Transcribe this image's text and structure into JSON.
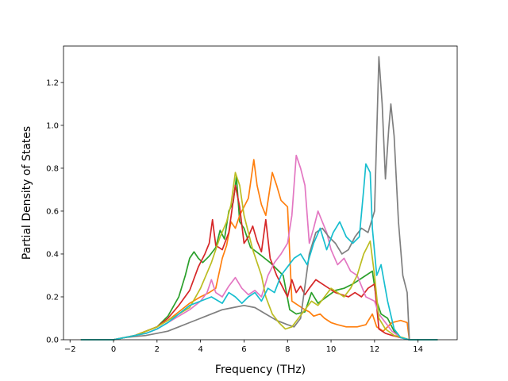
{
  "chart_data": {
    "type": "line",
    "title": "",
    "xlabel": "Frequency (THz)",
    "ylabel": "Partial Density of States",
    "xlim": [
      -2.3,
      15.8
    ],
    "ylim": [
      0.0,
      1.37
    ],
    "xticks": [
      -2,
      0,
      2,
      4,
      6,
      8,
      10,
      12,
      14
    ],
    "xtick_labels": [
      "−2",
      "0",
      "2",
      "4",
      "6",
      "8",
      "10",
      "12",
      "14"
    ],
    "yticks": [
      0.0,
      0.2,
      0.4,
      0.6,
      0.8,
      1.0,
      1.2
    ],
    "ytick_labels": [
      "0.0",
      "0.2",
      "0.4",
      "0.6",
      "0.8",
      "1.0",
      "1.2"
    ],
    "grid": false,
    "legend": "none",
    "series": [
      {
        "color": "#2ca02c",
        "points": [
          [
            -1.5,
            0
          ],
          [
            0,
            0
          ],
          [
            0.5,
            0.01
          ],
          [
            1,
            0.02
          ],
          [
            1.5,
            0.04
          ],
          [
            2,
            0.06
          ],
          [
            2.5,
            0.11
          ],
          [
            3,
            0.2
          ],
          [
            3.3,
            0.3
          ],
          [
            3.5,
            0.38
          ],
          [
            3.7,
            0.41
          ],
          [
            3.9,
            0.38
          ],
          [
            4.1,
            0.36
          ],
          [
            4.4,
            0.39
          ],
          [
            4.7,
            0.43
          ],
          [
            4.9,
            0.51
          ],
          [
            5.1,
            0.47
          ],
          [
            5.3,
            0.6
          ],
          [
            5.5,
            0.64
          ],
          [
            5.65,
            0.76
          ],
          [
            5.8,
            0.55
          ],
          [
            6,
            0.52
          ],
          [
            6.3,
            0.43
          ],
          [
            6.7,
            0.4
          ],
          [
            7.2,
            0.36
          ],
          [
            7.8,
            0.3
          ],
          [
            8.1,
            0.14
          ],
          [
            8.4,
            0.12
          ],
          [
            8.8,
            0.13
          ],
          [
            9.1,
            0.22
          ],
          [
            9.4,
            0.17
          ],
          [
            9.8,
            0.2
          ],
          [
            10.2,
            0.23
          ],
          [
            10.6,
            0.24
          ],
          [
            11,
            0.26
          ],
          [
            11.3,
            0.28
          ],
          [
            11.6,
            0.3
          ],
          [
            11.9,
            0.32
          ],
          [
            12.1,
            0.18
          ],
          [
            12.3,
            0.12
          ],
          [
            12.6,
            0.1
          ],
          [
            12.9,
            0.04
          ],
          [
            13.2,
            0.01
          ],
          [
            13.6,
            0
          ],
          [
            14.9,
            0
          ]
        ]
      },
      {
        "color": "#ff7f0e",
        "points": [
          [
            -1.5,
            0
          ],
          [
            0,
            0
          ],
          [
            0.5,
            0.01
          ],
          [
            1,
            0.02
          ],
          [
            1.5,
            0.04
          ],
          [
            2,
            0.06
          ],
          [
            2.5,
            0.09
          ],
          [
            3,
            0.13
          ],
          [
            3.5,
            0.17
          ],
          [
            4,
            0.2
          ],
          [
            4.4,
            0.22
          ],
          [
            4.7,
            0.24
          ],
          [
            5,
            0.38
          ],
          [
            5.2,
            0.44
          ],
          [
            5.4,
            0.55
          ],
          [
            5.6,
            0.52
          ],
          [
            5.8,
            0.58
          ],
          [
            6,
            0.62
          ],
          [
            6.2,
            0.66
          ],
          [
            6.45,
            0.84
          ],
          [
            6.6,
            0.72
          ],
          [
            6.8,
            0.63
          ],
          [
            7,
            0.58
          ],
          [
            7.3,
            0.78
          ],
          [
            7.5,
            0.72
          ],
          [
            7.7,
            0.65
          ],
          [
            8,
            0.62
          ],
          [
            8.2,
            0.18
          ],
          [
            8.5,
            0.16
          ],
          [
            8.8,
            0.14
          ],
          [
            9,
            0.13
          ],
          [
            9.2,
            0.11
          ],
          [
            9.5,
            0.12
          ],
          [
            9.7,
            0.1
          ],
          [
            10,
            0.08
          ],
          [
            10.3,
            0.07
          ],
          [
            10.7,
            0.06
          ],
          [
            11.2,
            0.06
          ],
          [
            11.6,
            0.07
          ],
          [
            11.9,
            0.12
          ],
          [
            12.1,
            0.06
          ],
          [
            12.4,
            0.04
          ],
          [
            12.8,
            0.08
          ],
          [
            13.2,
            0.09
          ],
          [
            13.5,
            0.08
          ],
          [
            13.6,
            0
          ],
          [
            14.9,
            0
          ]
        ]
      },
      {
        "color": "#d62728",
        "points": [
          [
            -1.5,
            0
          ],
          [
            0,
            0
          ],
          [
            0.5,
            0.01
          ],
          [
            1,
            0.02
          ],
          [
            1.5,
            0.04
          ],
          [
            2,
            0.06
          ],
          [
            2.5,
            0.1
          ],
          [
            3,
            0.16
          ],
          [
            3.5,
            0.23
          ],
          [
            3.9,
            0.34
          ],
          [
            4.2,
            0.4
          ],
          [
            4.4,
            0.45
          ],
          [
            4.55,
            0.56
          ],
          [
            4.7,
            0.44
          ],
          [
            5,
            0.42
          ],
          [
            5.3,
            0.5
          ],
          [
            5.6,
            0.72
          ],
          [
            5.8,
            0.62
          ],
          [
            6,
            0.45
          ],
          [
            6.2,
            0.48
          ],
          [
            6.4,
            0.53
          ],
          [
            6.6,
            0.46
          ],
          [
            6.8,
            0.41
          ],
          [
            7,
            0.56
          ],
          [
            7.2,
            0.38
          ],
          [
            7.5,
            0.3
          ],
          [
            7.8,
            0.24
          ],
          [
            8,
            0.2
          ],
          [
            8.2,
            0.28
          ],
          [
            8.4,
            0.22
          ],
          [
            8.6,
            0.25
          ],
          [
            8.8,
            0.21
          ],
          [
            9,
            0.24
          ],
          [
            9.3,
            0.28
          ],
          [
            9.6,
            0.26
          ],
          [
            9.9,
            0.24
          ],
          [
            10.2,
            0.22
          ],
          [
            10.5,
            0.21
          ],
          [
            10.8,
            0.2
          ],
          [
            11.1,
            0.22
          ],
          [
            11.4,
            0.2
          ],
          [
            11.7,
            0.24
          ],
          [
            12,
            0.26
          ],
          [
            12.2,
            0.05
          ],
          [
            12.5,
            0.03
          ],
          [
            12.8,
            0.02
          ],
          [
            13.2,
            0.01
          ],
          [
            13.6,
            0
          ],
          [
            14.9,
            0
          ]
        ]
      },
      {
        "color": "#e377c2",
        "points": [
          [
            -1.5,
            0
          ],
          [
            0,
            0
          ],
          [
            0.5,
            0.01
          ],
          [
            1,
            0.02
          ],
          [
            1.5,
            0.03
          ],
          [
            2,
            0.05
          ],
          [
            2.5,
            0.08
          ],
          [
            3,
            0.11
          ],
          [
            3.5,
            0.14
          ],
          [
            4,
            0.18
          ],
          [
            4.3,
            0.22
          ],
          [
            4.5,
            0.28
          ],
          [
            4.7,
            0.22
          ],
          [
            5,
            0.2
          ],
          [
            5.3,
            0.25
          ],
          [
            5.6,
            0.29
          ],
          [
            5.9,
            0.24
          ],
          [
            6.2,
            0.21
          ],
          [
            6.5,
            0.23
          ],
          [
            6.8,
            0.2
          ],
          [
            7.1,
            0.3
          ],
          [
            7.4,
            0.36
          ],
          [
            7.7,
            0.4
          ],
          [
            8,
            0.45
          ],
          [
            8.2,
            0.58
          ],
          [
            8.4,
            0.86
          ],
          [
            8.6,
            0.8
          ],
          [
            8.8,
            0.72
          ],
          [
            9,
            0.45
          ],
          [
            9.2,
            0.52
          ],
          [
            9.4,
            0.6
          ],
          [
            9.6,
            0.55
          ],
          [
            9.8,
            0.5
          ],
          [
            10,
            0.42
          ],
          [
            10.3,
            0.35
          ],
          [
            10.6,
            0.38
          ],
          [
            10.9,
            0.32
          ],
          [
            11.2,
            0.3
          ],
          [
            11.6,
            0.2
          ],
          [
            12,
            0.18
          ],
          [
            12.2,
            0.12
          ],
          [
            12.5,
            0.08
          ],
          [
            12.8,
            0.04
          ],
          [
            13.2,
            0.01
          ],
          [
            13.6,
            0
          ],
          [
            14.9,
            0
          ]
        ]
      },
      {
        "color": "#7f7f7f",
        "points": [
          [
            -1.5,
            0
          ],
          [
            0,
            0
          ],
          [
            0.5,
            0.01
          ],
          [
            1,
            0.015
          ],
          [
            1.5,
            0.02
          ],
          [
            2,
            0.03
          ],
          [
            2.5,
            0.04
          ],
          [
            3,
            0.06
          ],
          [
            3.5,
            0.08
          ],
          [
            4,
            0.1
          ],
          [
            4.5,
            0.12
          ],
          [
            5,
            0.14
          ],
          [
            5.5,
            0.15
          ],
          [
            6,
            0.16
          ],
          [
            6.5,
            0.15
          ],
          [
            7,
            0.12
          ],
          [
            7.5,
            0.09
          ],
          [
            8,
            0.07
          ],
          [
            8.3,
            0.06
          ],
          [
            8.6,
            0.1
          ],
          [
            9,
            0.4
          ],
          [
            9.3,
            0.5
          ],
          [
            9.6,
            0.52
          ],
          [
            9.9,
            0.48
          ],
          [
            10.2,
            0.45
          ],
          [
            10.5,
            0.4
          ],
          [
            10.8,
            0.42
          ],
          [
            11.1,
            0.48
          ],
          [
            11.4,
            0.52
          ],
          [
            11.7,
            0.5
          ],
          [
            12,
            0.6
          ],
          [
            12.2,
            1.32
          ],
          [
            12.35,
            1.1
          ],
          [
            12.5,
            0.75
          ],
          [
            12.65,
            0.98
          ],
          [
            12.75,
            1.1
          ],
          [
            12.9,
            0.95
          ],
          [
            13.1,
            0.55
          ],
          [
            13.3,
            0.3
          ],
          [
            13.5,
            0.22
          ],
          [
            13.6,
            0
          ],
          [
            14.9,
            0
          ]
        ]
      },
      {
        "color": "#bcbd22",
        "points": [
          [
            -1.5,
            0
          ],
          [
            0,
            0
          ],
          [
            0.5,
            0.01
          ],
          [
            1,
            0.02
          ],
          [
            1.5,
            0.04
          ],
          [
            2,
            0.06
          ],
          [
            2.5,
            0.09
          ],
          [
            3,
            0.12
          ],
          [
            3.5,
            0.15
          ],
          [
            4,
            0.24
          ],
          [
            4.5,
            0.36
          ],
          [
            4.9,
            0.48
          ],
          [
            5.2,
            0.55
          ],
          [
            5.4,
            0.63
          ],
          [
            5.6,
            0.78
          ],
          [
            5.8,
            0.72
          ],
          [
            6,
            0.58
          ],
          [
            6.2,
            0.5
          ],
          [
            6.4,
            0.42
          ],
          [
            6.6,
            0.36
          ],
          [
            6.8,
            0.3
          ],
          [
            7,
            0.2
          ],
          [
            7.3,
            0.12
          ],
          [
            7.6,
            0.08
          ],
          [
            7.9,
            0.05
          ],
          [
            8.2,
            0.06
          ],
          [
            8.5,
            0.1
          ],
          [
            8.8,
            0.14
          ],
          [
            9.1,
            0.18
          ],
          [
            9.4,
            0.16
          ],
          [
            9.7,
            0.2
          ],
          [
            10,
            0.24
          ],
          [
            10.3,
            0.22
          ],
          [
            10.6,
            0.2
          ],
          [
            10.9,
            0.24
          ],
          [
            11.2,
            0.3
          ],
          [
            11.5,
            0.4
          ],
          [
            11.8,
            0.46
          ],
          [
            12,
            0.3
          ],
          [
            12.2,
            0.1
          ],
          [
            12.5,
            0.05
          ],
          [
            12.9,
            0.02
          ],
          [
            13.3,
            0.01
          ],
          [
            13.6,
            0
          ],
          [
            14.9,
            0
          ]
        ]
      },
      {
        "color": "#17becf",
        "points": [
          [
            -1.5,
            0
          ],
          [
            0,
            0
          ],
          [
            0.5,
            0.01
          ],
          [
            1,
            0.02
          ],
          [
            1.5,
            0.03
          ],
          [
            2,
            0.05
          ],
          [
            2.5,
            0.08
          ],
          [
            3,
            0.12
          ],
          [
            3.5,
            0.16
          ],
          [
            4,
            0.18
          ],
          [
            4.5,
            0.2
          ],
          [
            5,
            0.17
          ],
          [
            5.3,
            0.22
          ],
          [
            5.6,
            0.2
          ],
          [
            5.9,
            0.17
          ],
          [
            6.2,
            0.2
          ],
          [
            6.5,
            0.22
          ],
          [
            6.8,
            0.18
          ],
          [
            7.1,
            0.24
          ],
          [
            7.4,
            0.22
          ],
          [
            7.7,
            0.3
          ],
          [
            8,
            0.34
          ],
          [
            8.3,
            0.38
          ],
          [
            8.6,
            0.4
          ],
          [
            8.9,
            0.35
          ],
          [
            9.2,
            0.45
          ],
          [
            9.5,
            0.52
          ],
          [
            9.8,
            0.42
          ],
          [
            10.1,
            0.5
          ],
          [
            10.4,
            0.55
          ],
          [
            10.7,
            0.48
          ],
          [
            11,
            0.45
          ],
          [
            11.3,
            0.48
          ],
          [
            11.5,
            0.7
          ],
          [
            11.6,
            0.82
          ],
          [
            11.8,
            0.78
          ],
          [
            11.9,
            0.52
          ],
          [
            12.1,
            0.3
          ],
          [
            12.3,
            0.35
          ],
          [
            12.6,
            0.18
          ],
          [
            12.9,
            0.05
          ],
          [
            13.2,
            0.01
          ],
          [
            13.6,
            0
          ],
          [
            14.9,
            0
          ]
        ]
      }
    ]
  }
}
